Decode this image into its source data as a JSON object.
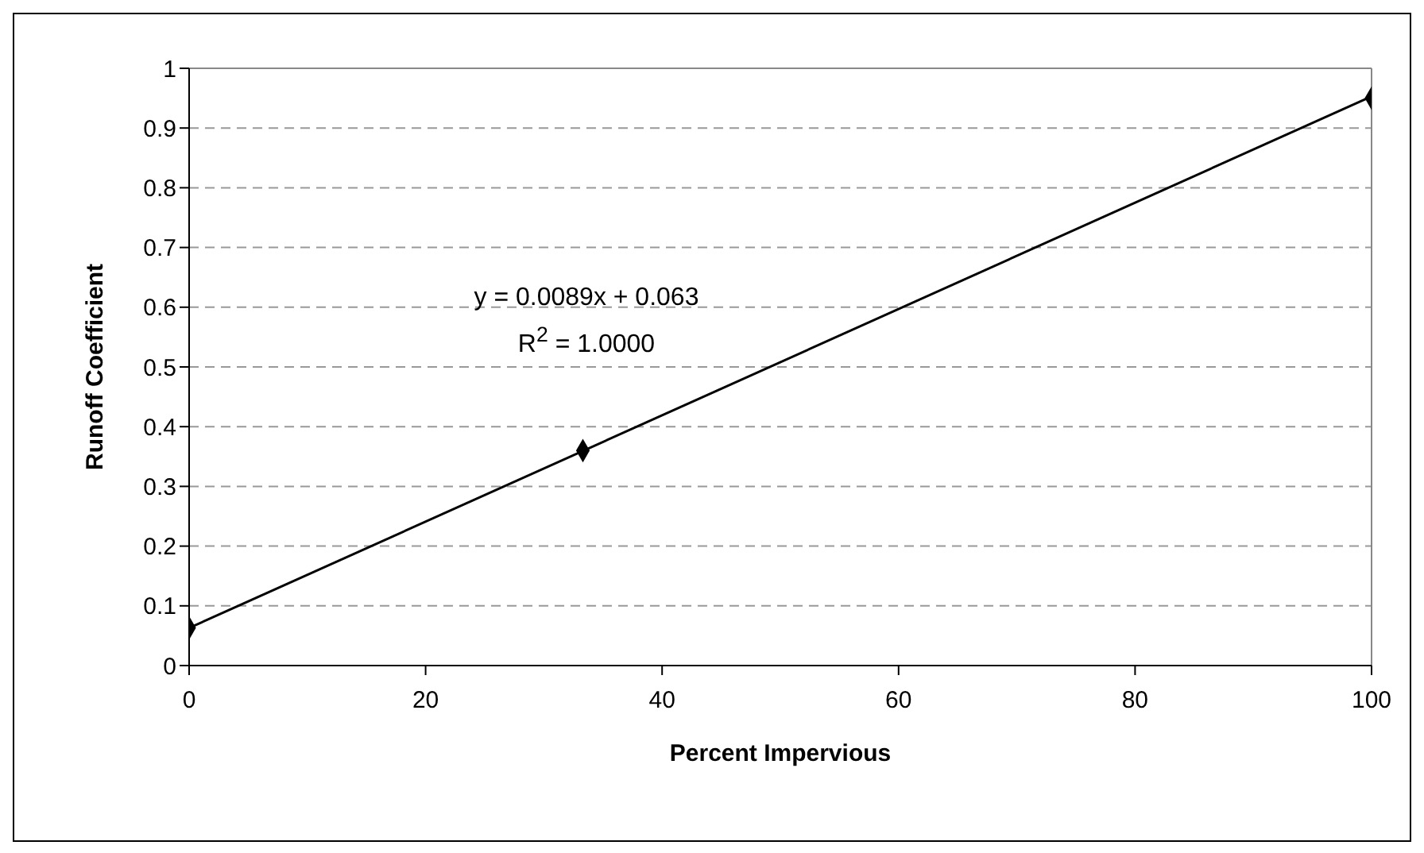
{
  "chart_data": {
    "type": "scatter",
    "xlabel": "Percent Impervious",
    "ylabel": "Runoff Coefficient",
    "series": [
      {
        "color": "#000000",
        "x": [
          0,
          33.3,
          100
        ],
        "values": [
          0.063,
          0.36,
          0.95
        ],
        "marker": "diamond"
      },
      {
        "type": "line",
        "color": "#000000",
        "x": [
          0,
          100
        ],
        "values": [
          0.063,
          0.953
        ],
        "marker": "none"
      }
    ],
    "xlim": [
      0,
      100
    ],
    "xticks": [
      0,
      20,
      40,
      60,
      80,
      100
    ],
    "ylim": [
      0,
      1
    ],
    "yticks": [
      0,
      0.1,
      0.2,
      0.3,
      0.4,
      0.5,
      0.6,
      0.7,
      0.8,
      0.9,
      1
    ],
    "grid": "y",
    "annotations": [
      "y = 0.0089x + 0.063",
      "R$^{2}$ = 1.0000"
    ]
  }
}
